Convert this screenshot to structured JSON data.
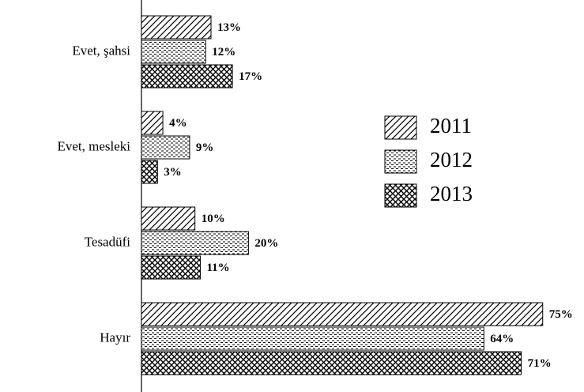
{
  "chart_data": {
    "type": "bar",
    "orientation": "horizontal",
    "categories": [
      "Evet, şahsi",
      "Evet, mesleki",
      "Tesadüfi",
      "Hayır"
    ],
    "series": [
      {
        "name": "2011",
        "color": "#000000",
        "pattern": "diagonal",
        "values": [
          13,
          4,
          10,
          75
        ],
        "value_labels": [
          "13%",
          "4%",
          "10%",
          "75%"
        ]
      },
      {
        "name": "2012",
        "color": "#000000",
        "pattern": "dotted",
        "values": [
          12,
          9,
          20,
          64
        ],
        "value_labels": [
          "12%",
          "9%",
          "20%",
          "64%"
        ]
      },
      {
        "name": "2013",
        "color": "#000000",
        "pattern": "crosshatch",
        "values": [
          17,
          3,
          11,
          71
        ],
        "value_labels": [
          "17%",
          "3%",
          "11%",
          "71%"
        ]
      }
    ],
    "legend": "right",
    "grid": false
  }
}
